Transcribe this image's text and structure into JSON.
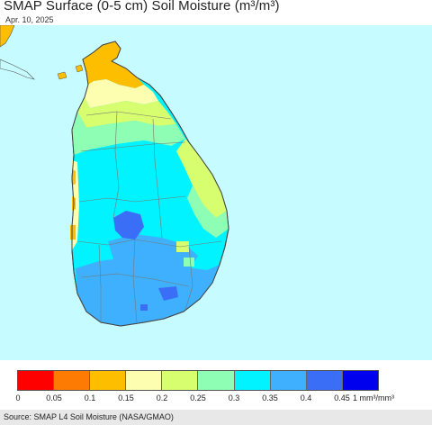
{
  "header": {
    "title": "SMAP Surface (0-5 cm) Soil Moisture (m³/m³)",
    "date": "Apr. 10, 2025"
  },
  "map": {
    "ocean_color": "#c6fbff",
    "land_outline_color": "#555555"
  },
  "legend": {
    "colors": [
      "#fe0000",
      "#fd7b03",
      "#fdbe00",
      "#fefeb0",
      "#d7fe6f",
      "#8efeb4",
      "#00f3ff",
      "#3fb0fe",
      "#3b6ef6",
      "#0000ee"
    ],
    "ticks": [
      "0",
      "0.05",
      "0.1",
      "0.15",
      "0.2",
      "0.25",
      "0.3",
      "0.35",
      "0.4",
      "0.45"
    ],
    "units": "1 mm³/mm³"
  },
  "footer": {
    "source": "Source: SMAP L4 Soil Moisture (NASA/GMAO)"
  }
}
